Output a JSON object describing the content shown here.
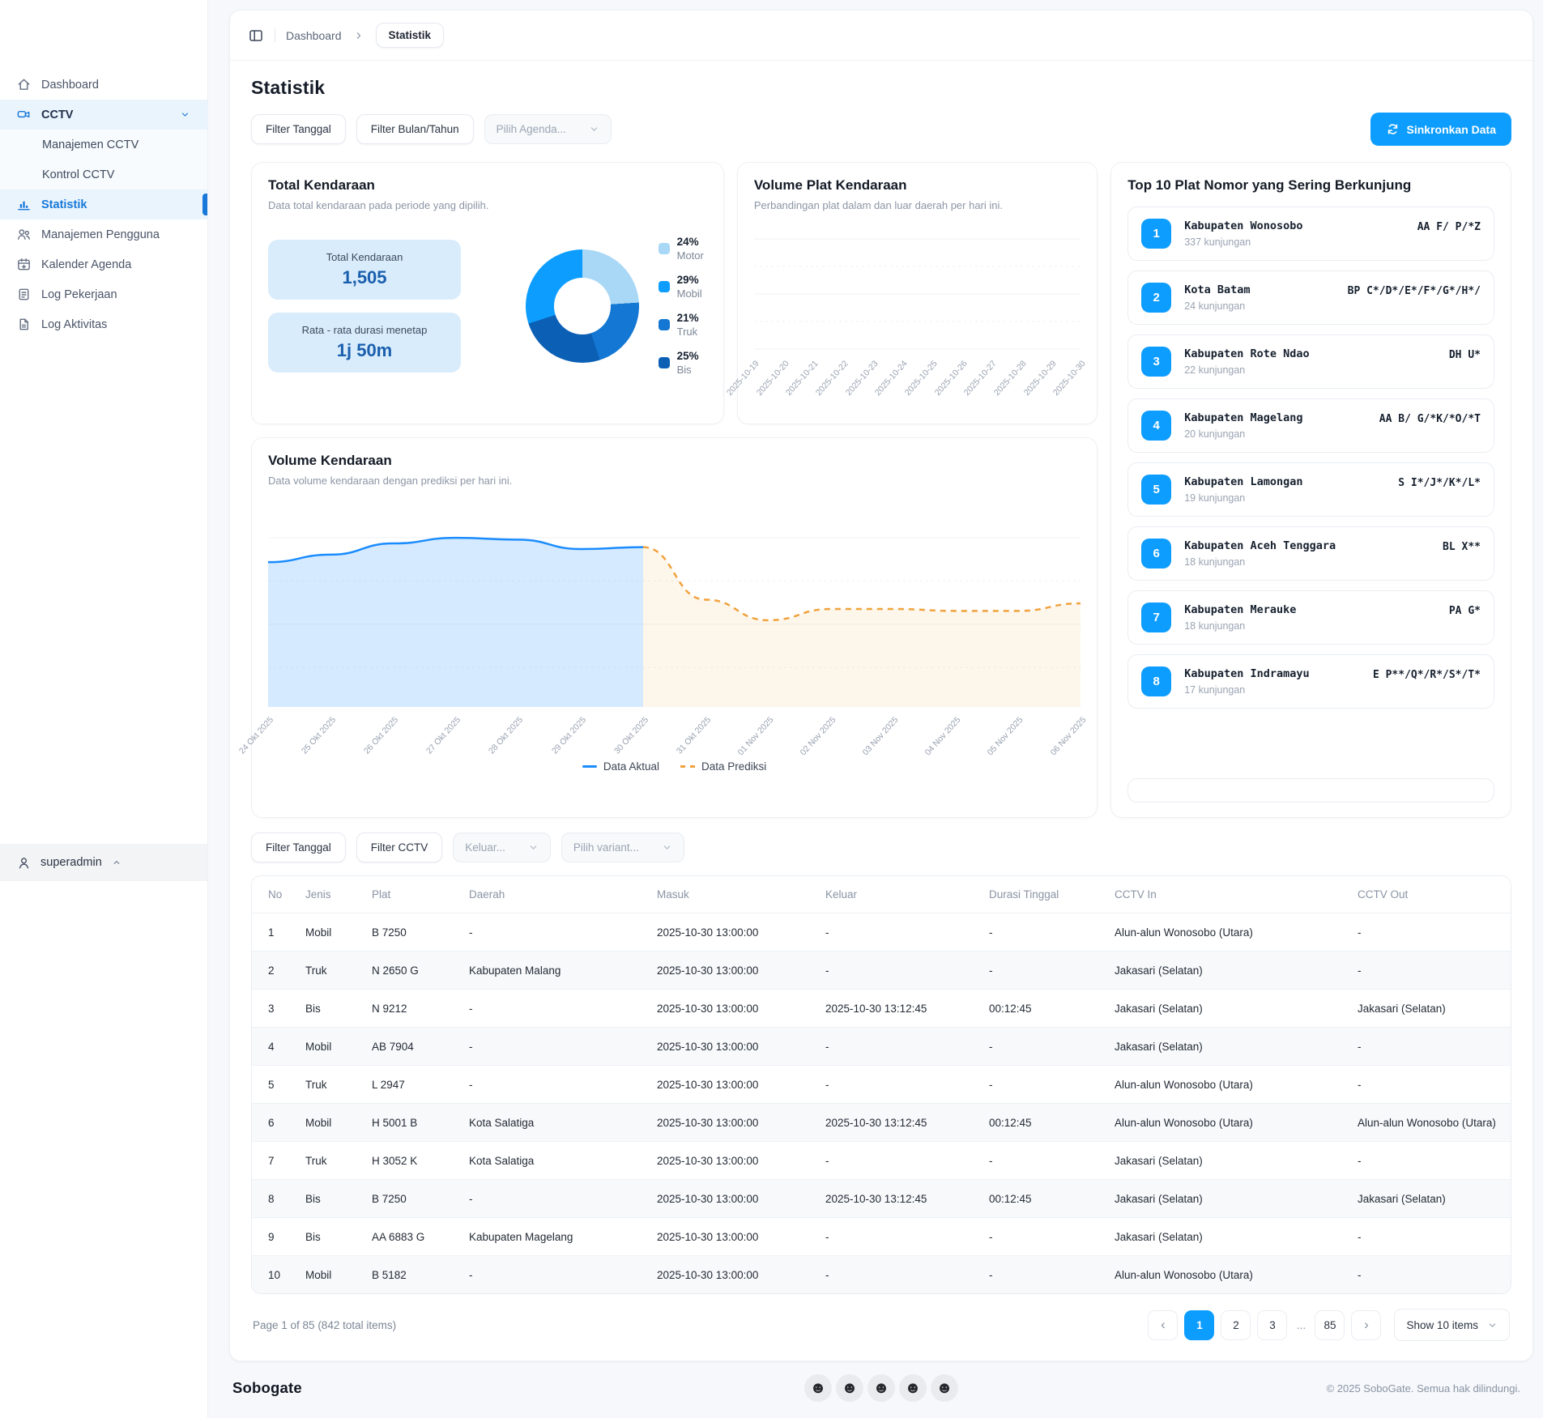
{
  "theme": {
    "primary": "#0D9DFF",
    "sidebar_active": "#1778D9"
  },
  "sidebar": {
    "items": [
      {
        "label": "Dashboard"
      },
      {
        "label": "CCTV"
      },
      {
        "label": "Manajemen CCTV"
      },
      {
        "label": "Kontrol CCTV"
      },
      {
        "label": "Statistik"
      },
      {
        "label": "Manajemen Pengguna"
      },
      {
        "label": "Kalender Agenda"
      },
      {
        "label": "Log Pekerjaan"
      },
      {
        "label": "Log Aktivitas"
      }
    ],
    "user": "superadmin"
  },
  "breadcrumb": {
    "root": "Dashboard",
    "current": "Statistik"
  },
  "page": {
    "title": "Statistik",
    "filters": {
      "date": "Filter Tanggal",
      "month": "Filter Bulan/Tahun",
      "agenda": "Pilih Agenda..."
    },
    "sync_button": "Sinkronkan Data"
  },
  "total_card": {
    "title": "Total Kendaraan",
    "subtitle": "Data total kendaraan pada periode yang dipilih.",
    "stats": [
      {
        "label": "Total Kendaraan",
        "value": "1,505"
      },
      {
        "label": "Rata - rata durasi menetap",
        "value": "1j 50m"
      }
    ]
  },
  "plat_card": {
    "title": "Volume Plat Kendaraan",
    "subtitle": "Perbandingan plat dalam dan luar daerah per hari ini."
  },
  "volume_card": {
    "title": "Volume Kendaraan",
    "subtitle": "Data volume kendaraan dengan prediksi per hari ini."
  },
  "top10": {
    "title": "Top 10 Plat Nomor yang Sering Berkunjung",
    "items": [
      {
        "rank": "1",
        "name": "Kabupaten Wonosobo",
        "visits": "337 kunjungan",
        "plate": "AA F/ P/*Z"
      },
      {
        "rank": "2",
        "name": "Kota Batam",
        "visits": "24 kunjungan",
        "plate": "BP C*/D*/E*/F*/G*/H*/"
      },
      {
        "rank": "3",
        "name": "Kabupaten Rote Ndao",
        "visits": "22 kunjungan",
        "plate": "DH U*"
      },
      {
        "rank": "4",
        "name": "Kabupaten Magelang",
        "visits": "20 kunjungan",
        "plate": "AA B/ G/*K/*O/*T"
      },
      {
        "rank": "5",
        "name": "Kabupaten Lamongan",
        "visits": "19 kunjungan",
        "plate": "S I*/J*/K*/L*"
      },
      {
        "rank": "6",
        "name": "Kabupaten Aceh Tenggara",
        "visits": "18 kunjungan",
        "plate": "BL X**"
      },
      {
        "rank": "7",
        "name": "Kabupaten Merauke",
        "visits": "18 kunjungan",
        "plate": "PA G*"
      },
      {
        "rank": "8",
        "name": "Kabupaten Indramayu",
        "visits": "17 kunjungan",
        "plate": "E P**/Q*/R*/S*/T*"
      }
    ]
  },
  "chart_data": [
    {
      "type": "pie",
      "donut": true,
      "title": "Total Kendaraan",
      "slices": [
        {
          "label": "Motor",
          "value": 24,
          "pct_text": "24%",
          "color": "#A9D7F6"
        },
        {
          "label": "Mobil",
          "value": 29,
          "pct_text": "29%",
          "color": "#0D9DFF"
        },
        {
          "label": "Truk",
          "value": 21,
          "pct_text": "21%",
          "color": "#1377D3"
        },
        {
          "label": "Bis",
          "value": 25,
          "pct_text": "25%",
          "color": "#0B60B5"
        }
      ],
      "ring_order": [
        "Motor",
        "Truk",
        "Bis",
        "Mobil"
      ],
      "legend_position": "right"
    },
    {
      "type": "line",
      "title": "Volume Plat Kendaraan",
      "categories": [
        "2025-10-19",
        "2025-10-20",
        "2025-10-21",
        "2025-10-22",
        "2025-10-23",
        "2025-10-24",
        "2025-10-25",
        "2025-10-26",
        "2025-10-27",
        "2025-10-28",
        "2025-10-29",
        "2025-10-30"
      ],
      "series": [],
      "grid": true,
      "note": "chart area rendered empty (no series plotted)"
    },
    {
      "type": "area",
      "title": "Volume Kendaraan",
      "categories": [
        "24 Okt 2025",
        "25 Okt 2025",
        "26 Okt 2025",
        "27 Okt 2025",
        "28 Okt 2025",
        "29 Okt 2025",
        "30 Okt 2025",
        "31 Okt 2025",
        "01 Nov 2025",
        "02 Nov 2025",
        "03 Nov 2025",
        "04 Nov 2025",
        "05 Nov 2025",
        "06 Nov 2025"
      ],
      "series": [
        {
          "name": "Data Aktual",
          "color": "#1A8CFF",
          "line_style": "solid",
          "values": [
            75,
            79,
            85,
            88,
            87,
            82,
            83,
            null,
            null,
            null,
            null,
            null,
            null,
            null
          ]
        },
        {
          "name": "Data Prediksi",
          "color": "#F0A23C",
          "line_style": "dashed",
          "values": [
            null,
            null,
            null,
            null,
            null,
            null,
            83,
            55,
            44,
            50,
            50,
            49,
            49,
            53
          ]
        }
      ],
      "ylim": [
        0,
        100
      ],
      "grid": true,
      "legend_position": "bottom"
    }
  ],
  "table_section": {
    "filters": {
      "date": "Filter Tanggal",
      "cctv": "Filter CCTV",
      "keluar": "Keluar...",
      "variant": "Pilih variant..."
    },
    "columns": [
      "No",
      "Jenis",
      "Plat",
      "Daerah",
      "Masuk",
      "Keluar",
      "Durasi Tinggal",
      "CCTV In",
      "CCTV Out"
    ],
    "rows": [
      [
        "1",
        "Mobil",
        "B 7250",
        "-",
        "2025-10-30 13:00:00",
        "-",
        "-",
        "Alun-alun Wonosobo (Utara)",
        "-"
      ],
      [
        "2",
        "Truk",
        "N 2650 G",
        "Kabupaten Malang",
        "2025-10-30 13:00:00",
        "-",
        "-",
        "Jakasari (Selatan)",
        "-"
      ],
      [
        "3",
        "Bis",
        "N 9212",
        "-",
        "2025-10-30 13:00:00",
        "2025-10-30 13:12:45",
        "00:12:45",
        "Jakasari (Selatan)",
        "Jakasari (Selatan)"
      ],
      [
        "4",
        "Mobil",
        "AB 7904",
        "-",
        "2025-10-30 13:00:00",
        "-",
        "-",
        "Jakasari (Selatan)",
        "-"
      ],
      [
        "5",
        "Truk",
        "L 2947",
        "-",
        "2025-10-30 13:00:00",
        "-",
        "-",
        "Alun-alun Wonosobo (Utara)",
        "-"
      ],
      [
        "6",
        "Mobil",
        "H 5001 B",
        "Kota Salatiga",
        "2025-10-30 13:00:00",
        "2025-10-30 13:12:45",
        "00:12:45",
        "Alun-alun Wonosobo (Utara)",
        "Alun-alun Wonosobo (Utara)"
      ],
      [
        "7",
        "Truk",
        "H 3052 K",
        "Kota Salatiga",
        "2025-10-30 13:00:00",
        "-",
        "-",
        "Jakasari (Selatan)",
        "-"
      ],
      [
        "8",
        "Bis",
        "B 7250",
        "-",
        "2025-10-30 13:00:00",
        "2025-10-30 13:12:45",
        "00:12:45",
        "Jakasari (Selatan)",
        "Jakasari (Selatan)"
      ],
      [
        "9",
        "Bis",
        "AA 6883 G",
        "Kabupaten Magelang",
        "2025-10-30 13:00:00",
        "-",
        "-",
        "Jakasari (Selatan)",
        "-"
      ],
      [
        "10",
        "Mobil",
        "B 5182",
        "-",
        "2025-10-30 13:00:00",
        "-",
        "-",
        "Alun-alun Wonosobo (Utara)",
        "-"
      ]
    ]
  },
  "pagination": {
    "summary": "Page 1 of 85 (842 total items)",
    "pages": [
      "1",
      "2",
      "3"
    ],
    "ellipsis": "...",
    "last_page": "85",
    "show_label": "Show 10 items"
  },
  "footer": {
    "brand": "Sobogate",
    "copyright": "© 2025 SoboGate. Semua hak dilindungi."
  }
}
